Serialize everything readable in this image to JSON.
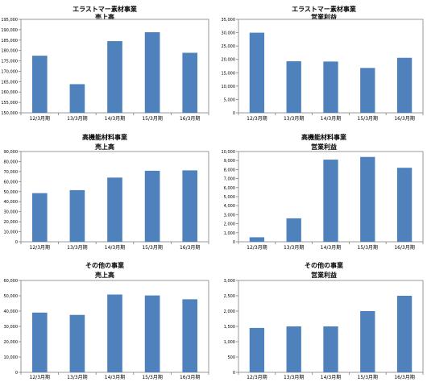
{
  "chart_data": [
    {
      "type": "bar",
      "title": "エラストマー素材事業",
      "subtitle": "売上高",
      "categories": [
        "12/3月期",
        "13/3月期",
        "14/3月期",
        "15/3月期",
        "16/3月期"
      ],
      "values": [
        177500,
        163800,
        184500,
        188800,
        178900
      ],
      "ylim": [
        150000,
        195000
      ],
      "yticks": [
        150000,
        155000,
        160000,
        165000,
        170000,
        175000,
        180000,
        185000,
        190000,
        195000
      ],
      "ytick_labels": [
        "150,000",
        "155,000",
        "160,000",
        "165,000",
        "170,000",
        "175,000",
        "180,000",
        "185,000",
        "190,000",
        "195,000"
      ],
      "grid": false,
      "bar_color": "#4f81bd"
    },
    {
      "type": "bar",
      "title": "エラストマー素材事業",
      "subtitle": "営業利益",
      "categories": [
        "12/3月期",
        "13/3月期",
        "14/3月期",
        "15/3月期",
        "16/3月期"
      ],
      "values": [
        30000,
        19300,
        19200,
        16800,
        20600
      ],
      "ylim": [
        0,
        35000
      ],
      "yticks": [
        0,
        5000,
        10000,
        15000,
        20000,
        25000,
        30000,
        35000
      ],
      "ytick_labels": [
        "0",
        "5,000",
        "10,000",
        "15,000",
        "20,000",
        "25,000",
        "30,000",
        "35,000"
      ],
      "grid": false,
      "bar_color": "#4f81bd"
    },
    {
      "type": "bar",
      "title": "高機能材料事業",
      "subtitle": "売上高",
      "categories": [
        "12/3月期",
        "13/3月期",
        "14/3月期",
        "15/3月期",
        "16/3月期"
      ],
      "values": [
        48500,
        51500,
        64000,
        70800,
        71200
      ],
      "ylim": [
        0,
        90000
      ],
      "yticks": [
        0,
        10000,
        20000,
        30000,
        40000,
        50000,
        60000,
        70000,
        80000,
        90000
      ],
      "ytick_labels": [
        "0",
        "10,000",
        "20,000",
        "30,000",
        "40,000",
        "50,000",
        "60,000",
        "70,000",
        "80,000",
        "90,000"
      ],
      "grid": false,
      "bar_color": "#4f81bd"
    },
    {
      "type": "bar",
      "title": "高機能材料事業",
      "subtitle": "営業利益",
      "categories": [
        "12/3月期",
        "13/3月期",
        "14/3月期",
        "15/3月期",
        "16/3月期"
      ],
      "values": [
        500,
        2600,
        9100,
        9400,
        8200
      ],
      "ylim": [
        0,
        10000
      ],
      "yticks": [
        0,
        1000,
        2000,
        3000,
        4000,
        5000,
        6000,
        7000,
        8000,
        9000,
        10000
      ],
      "ytick_labels": [
        "0",
        "1,000",
        "2,000",
        "3,000",
        "4,000",
        "5,000",
        "6,000",
        "7,000",
        "8,000",
        "9,000",
        "10,000"
      ],
      "grid": false,
      "bar_color": "#4f81bd"
    },
    {
      "type": "bar",
      "title": "その他の事業",
      "subtitle": "売上高",
      "categories": [
        "12/3月期",
        "13/3月期",
        "14/3月期",
        "15/3月期",
        "16/3月期"
      ],
      "values": [
        39000,
        37500,
        50800,
        50200,
        47700
      ],
      "ylim": [
        0,
        60000
      ],
      "yticks": [
        0,
        10000,
        20000,
        30000,
        40000,
        50000,
        60000
      ],
      "ytick_labels": [
        "0",
        "10,000",
        "20,000",
        "30,000",
        "40,000",
        "50,000",
        "60,000"
      ],
      "grid": false,
      "bar_color": "#4f81bd"
    },
    {
      "type": "bar",
      "title": "その他の事業",
      "subtitle": "営業利益",
      "categories": [
        "12/3月期",
        "13/3月期",
        "14/3月期",
        "15/3月期",
        "16/3月期"
      ],
      "values": [
        1450,
        1500,
        1500,
        2000,
        2500
      ],
      "ylim": [
        0,
        3000
      ],
      "yticks": [
        0,
        500,
        1000,
        1500,
        2000,
        2500,
        3000
      ],
      "ytick_labels": [
        "0",
        "500",
        "1,000",
        "1,500",
        "2,000",
        "2,500",
        "3,000"
      ],
      "grid": false,
      "bar_color": "#4f81bd"
    }
  ]
}
